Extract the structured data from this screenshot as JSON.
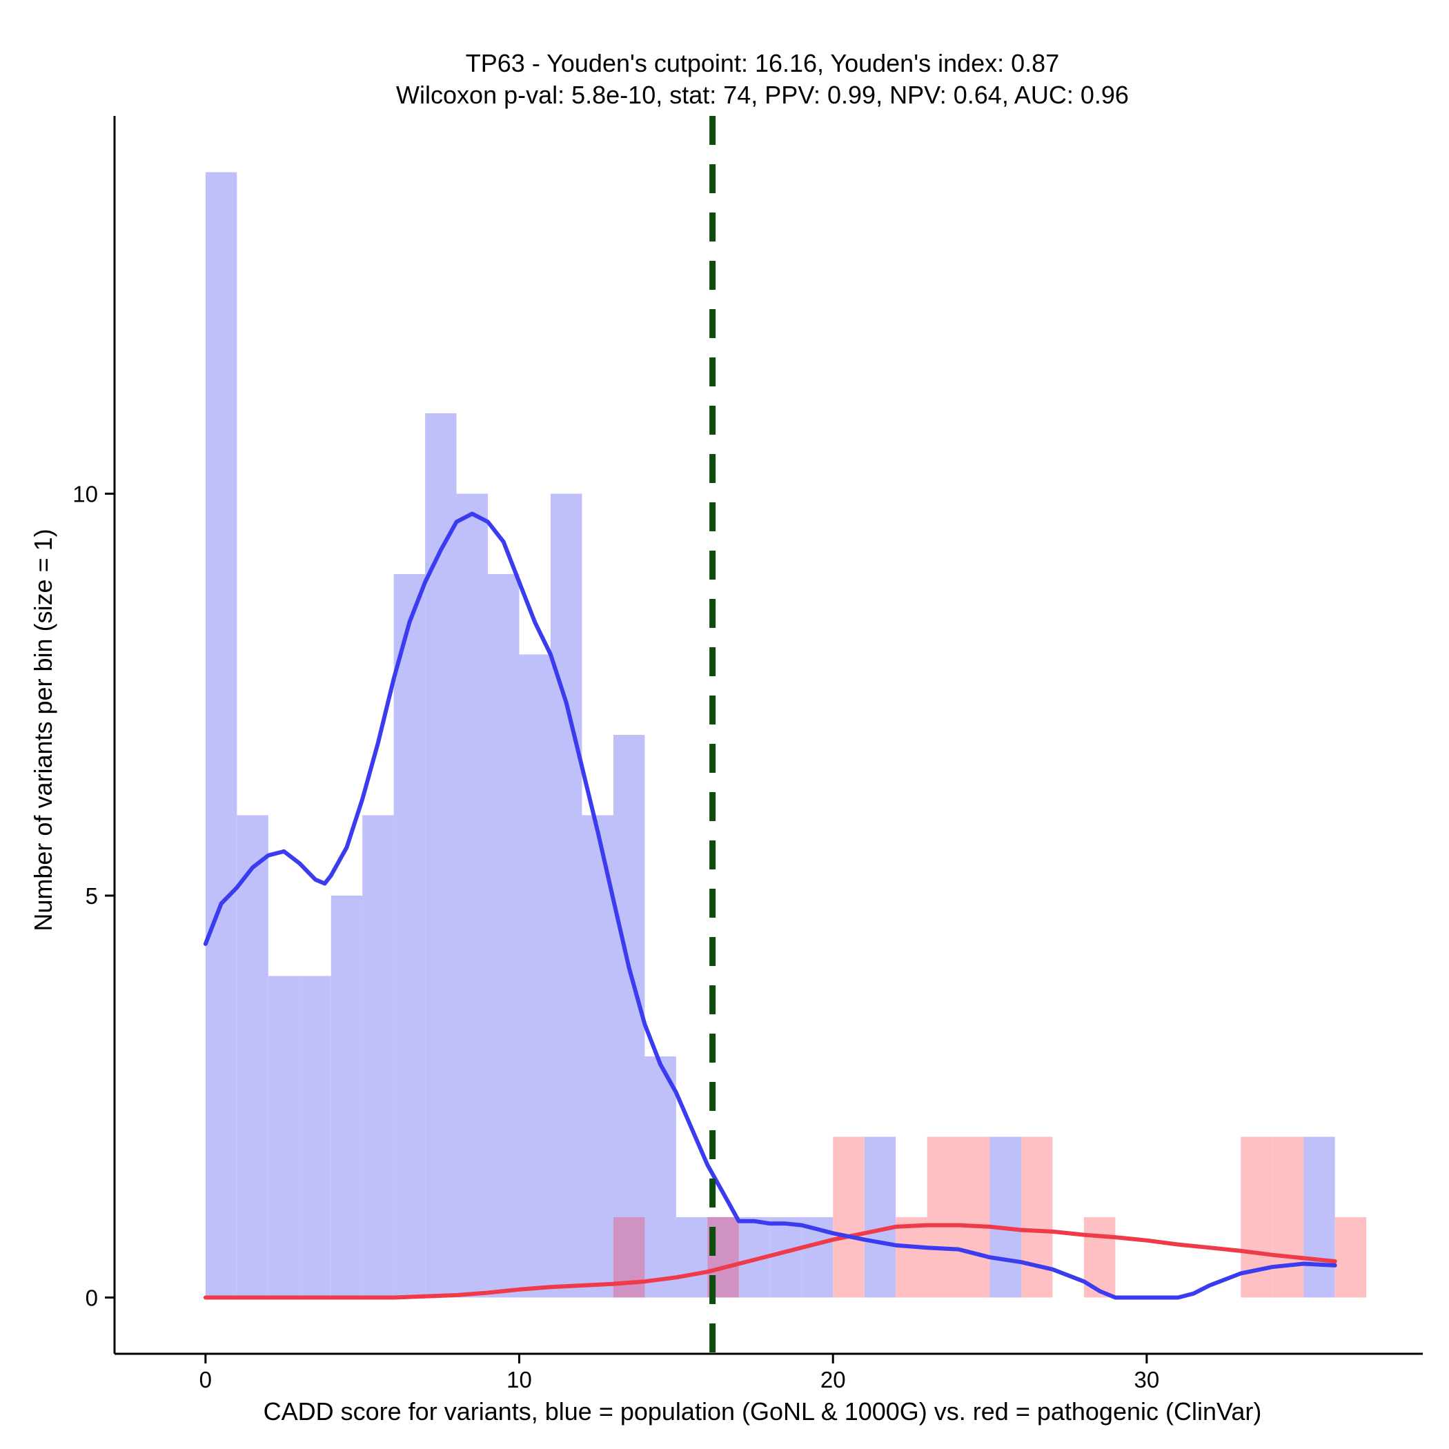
{
  "chart_data": {
    "type": "histogram",
    "title_line1": "TP63 - Youden's cutpoint: 16.16, Youden's index: 0.87",
    "title_line2": "Wilcoxon p-val: 5.8e-10, stat: 74, PPV: 0.99, NPV: 0.64, AUC: 0.96",
    "xlabel": "CADD score for variants, blue = population (GoNL & 1000G) vs. red = pathogenic (ClinVar)",
    "ylabel": "Number of variants per bin (size = 1)",
    "xlim": [
      -2.9,
      38.8
    ],
    "ylim": [
      -0.7,
      14.7
    ],
    "x_ticks": [
      0,
      10,
      20,
      30
    ],
    "x_tick_labels": [
      "0",
      "10",
      "20",
      "30"
    ],
    "y_ticks": [
      0,
      5,
      10
    ],
    "y_tick_labels": [
      "0",
      "5",
      "10"
    ],
    "bin_width": 1,
    "cutpoint": 16.16,
    "colors": {
      "population_bar": "#bfbffa",
      "pathogenic_bar": "#ffc0c4",
      "overlap_bar": "#d092c3",
      "population_density": "#3b3bef",
      "pathogenic_density": "#ef3a4a",
      "cutpoint_line": "#0f4d0f"
    },
    "series": [
      {
        "name": "population (GoNL & 1000G)",
        "bins": [
          {
            "x": 0,
            "count": 14
          },
          {
            "x": 1,
            "count": 6
          },
          {
            "x": 2,
            "count": 4
          },
          {
            "x": 3,
            "count": 4
          },
          {
            "x": 4,
            "count": 5
          },
          {
            "x": 5,
            "count": 6
          },
          {
            "x": 6,
            "count": 9
          },
          {
            "x": 7,
            "count": 11
          },
          {
            "x": 8,
            "count": 10
          },
          {
            "x": 9,
            "count": 9
          },
          {
            "x": 10,
            "count": 8
          },
          {
            "x": 11,
            "count": 10
          },
          {
            "x": 12,
            "count": 6
          },
          {
            "x": 13,
            "count": 7
          },
          {
            "x": 14,
            "count": 3
          },
          {
            "x": 15,
            "count": 1
          },
          {
            "x": 16,
            "count": 1
          },
          {
            "x": 17,
            "count": 1
          },
          {
            "x": 18,
            "count": 1
          },
          {
            "x": 19,
            "count": 1
          },
          {
            "x": 21,
            "count": 2
          },
          {
            "x": 25,
            "count": 2
          },
          {
            "x": 35,
            "count": 2
          }
        ],
        "density": [
          [
            0,
            4.4
          ],
          [
            0.5,
            4.9
          ],
          [
            1,
            5.1
          ],
          [
            1.5,
            5.35
          ],
          [
            2,
            5.5
          ],
          [
            2.5,
            5.55
          ],
          [
            3,
            5.4
          ],
          [
            3.5,
            5.2
          ],
          [
            3.8,
            5.15
          ],
          [
            4,
            5.25
          ],
          [
            4.5,
            5.6
          ],
          [
            5,
            6.2
          ],
          [
            5.5,
            6.9
          ],
          [
            6,
            7.7
          ],
          [
            6.5,
            8.4
          ],
          [
            7,
            8.9
          ],
          [
            7.5,
            9.3
          ],
          [
            8,
            9.65
          ],
          [
            8.5,
            9.75
          ],
          [
            9,
            9.65
          ],
          [
            9.5,
            9.4
          ],
          [
            10,
            8.9
          ],
          [
            10.5,
            8.4
          ],
          [
            11,
            8.0
          ],
          [
            11.5,
            7.4
          ],
          [
            12,
            6.6
          ],
          [
            12.5,
            5.8
          ],
          [
            13,
            4.95
          ],
          [
            13.5,
            4.1
          ],
          [
            14,
            3.4
          ],
          [
            14.5,
            2.9
          ],
          [
            15,
            2.55
          ],
          [
            15.5,
            2.1
          ],
          [
            16,
            1.65
          ],
          [
            16.5,
            1.3
          ],
          [
            17,
            0.95
          ],
          [
            17.5,
            0.95
          ],
          [
            18,
            0.92
          ],
          [
            18.5,
            0.92
          ],
          [
            19,
            0.9
          ],
          [
            19.5,
            0.85
          ],
          [
            20,
            0.8
          ],
          [
            21,
            0.72
          ],
          [
            22,
            0.65
          ],
          [
            23,
            0.62
          ],
          [
            24,
            0.6
          ],
          [
            25,
            0.5
          ],
          [
            26,
            0.44
          ],
          [
            27,
            0.35
          ],
          [
            28,
            0.2
          ],
          [
            28.5,
            0.08
          ],
          [
            29,
            0.0
          ],
          [
            29.5,
            0.0
          ],
          [
            30,
            0.0
          ],
          [
            31,
            0.0
          ],
          [
            31.5,
            0.05
          ],
          [
            32,
            0.15
          ],
          [
            33,
            0.3
          ],
          [
            34,
            0.38
          ],
          [
            35,
            0.42
          ],
          [
            36,
            0.4
          ]
        ]
      },
      {
        "name": "pathogenic (ClinVar)",
        "bins": [
          {
            "x": 13,
            "count": 1
          },
          {
            "x": 16,
            "count": 1
          },
          {
            "x": 20,
            "count": 2
          },
          {
            "x": 22,
            "count": 1
          },
          {
            "x": 23,
            "count": 2
          },
          {
            "x": 24,
            "count": 2
          },
          {
            "x": 26,
            "count": 2
          },
          {
            "x": 28,
            "count": 1
          },
          {
            "x": 33,
            "count": 2
          },
          {
            "x": 34,
            "count": 2
          },
          {
            "x": 36,
            "count": 1
          }
        ],
        "density": [
          [
            0,
            0.0
          ],
          [
            2,
            0.0
          ],
          [
            4,
            0.0
          ],
          [
            6,
            0.0
          ],
          [
            8,
            0.03
          ],
          [
            9,
            0.06
          ],
          [
            10,
            0.1
          ],
          [
            11,
            0.13
          ],
          [
            12,
            0.15
          ],
          [
            13,
            0.17
          ],
          [
            14,
            0.2
          ],
          [
            15,
            0.25
          ],
          [
            16,
            0.32
          ],
          [
            17,
            0.42
          ],
          [
            18,
            0.52
          ],
          [
            19,
            0.62
          ],
          [
            20,
            0.72
          ],
          [
            21,
            0.8
          ],
          [
            22,
            0.88
          ],
          [
            23,
            0.9
          ],
          [
            24,
            0.9
          ],
          [
            25,
            0.88
          ],
          [
            26,
            0.84
          ],
          [
            27,
            0.82
          ],
          [
            28,
            0.78
          ],
          [
            29,
            0.75
          ],
          [
            30,
            0.71
          ],
          [
            31,
            0.66
          ],
          [
            32,
            0.62
          ],
          [
            33,
            0.58
          ],
          [
            34,
            0.53
          ],
          [
            35,
            0.49
          ],
          [
            36,
            0.45
          ]
        ]
      }
    ]
  }
}
